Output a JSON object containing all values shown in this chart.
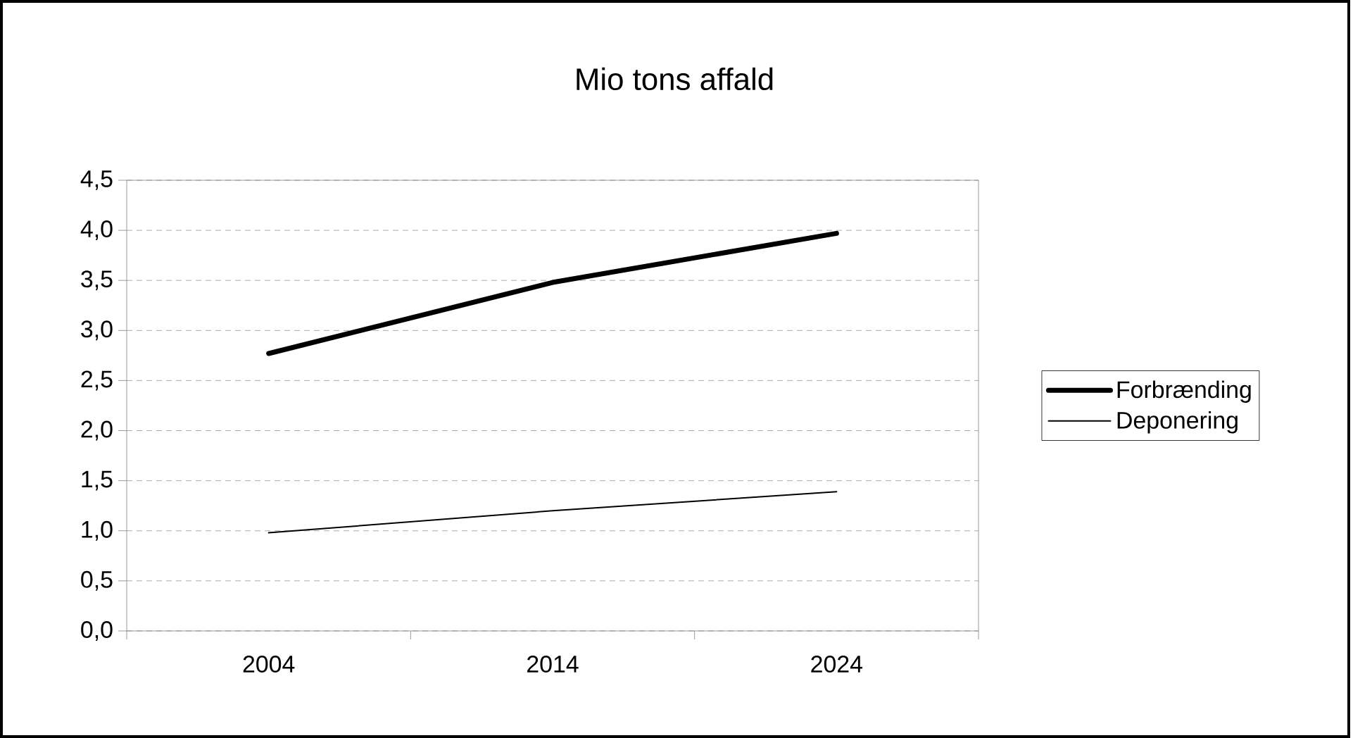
{
  "chart_data": {
    "type": "line",
    "title": "Mio tons affald",
    "categories": [
      "2004",
      "2014",
      "2024"
    ],
    "series": [
      {
        "name": "Forbrænding",
        "color": "#000000",
        "values": [
          2.77,
          3.48,
          3.97
        ]
      },
      {
        "name": "Deponering",
        "color": "#000000",
        "values": [
          0.98,
          1.2,
          1.39
        ]
      }
    ],
    "ylim": [
      0,
      4.5
    ],
    "yticks": [
      {
        "value": 0,
        "label": "0,0"
      },
      {
        "value": 0.5,
        "label": "0,5"
      },
      {
        "value": 1,
        "label": "1,0"
      },
      {
        "value": 1.5,
        "label": "1,5"
      },
      {
        "value": 2,
        "label": "2,0"
      },
      {
        "value": 2.5,
        "label": "2,5"
      },
      {
        "value": 3,
        "label": "3,0"
      },
      {
        "value": 3.5,
        "label": "3,5"
      },
      {
        "value": 4,
        "label": "4,0"
      },
      {
        "value": 4.5,
        "label": "4,5"
      }
    ],
    "grid": "y",
    "legend": "right",
    "marker": "none",
    "line_style": "solid"
  }
}
